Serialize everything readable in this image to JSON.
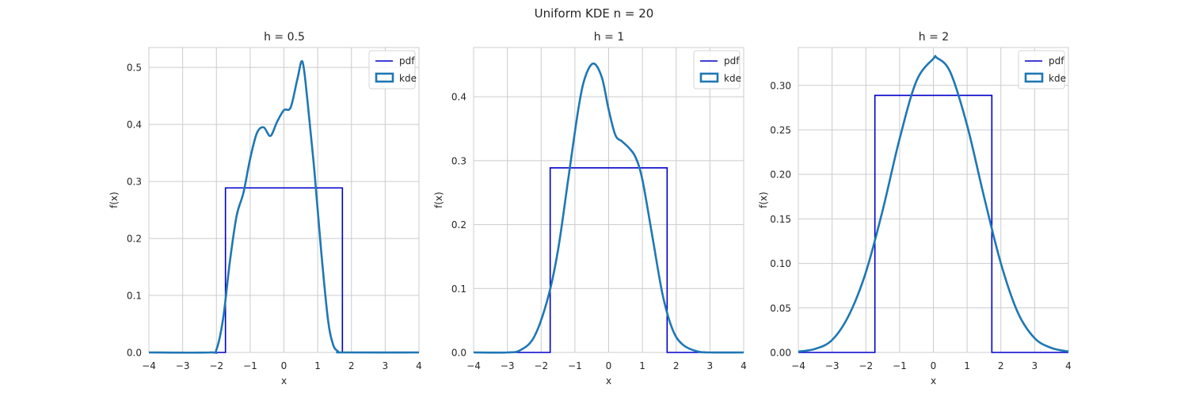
{
  "figure": {
    "suptitle": "Uniform KDE n = 20"
  },
  "colors": {
    "pdf": "#0000cc",
    "kde": "#1f77b4",
    "grid": "#cccccc",
    "spine": "#cccccc",
    "text": "#262626"
  },
  "chart_data": [
    {
      "type": "line",
      "title": "h = 0.5",
      "xlabel": "x",
      "ylabel": "f(x)",
      "xlim": [
        -4,
        4
      ],
      "ylim": [
        0,
        0.535
      ],
      "xticks": [
        -4,
        -3,
        -2,
        -1,
        0,
        1,
        2,
        3,
        4
      ],
      "xtick_labels": [
        "−4",
        "−3",
        "−2",
        "−1",
        "0",
        "1",
        "2",
        "3",
        "4"
      ],
      "yticks": [
        0,
        0.1,
        0.2,
        0.3,
        0.4,
        0.5
      ],
      "ytick_labels": [
        "0.0",
        "0.1",
        "0.2",
        "0.3",
        "0.4",
        "0.5"
      ],
      "grid": true,
      "legend": {
        "position": "top-right",
        "entries": [
          "pdf",
          "kde"
        ]
      },
      "series": [
        {
          "name": "pdf",
          "style": "step",
          "x": [
            -4,
            -1.732,
            -1.732,
            1.732,
            1.732,
            4
          ],
          "y": [
            0,
            0,
            0.2887,
            0.2887,
            0,
            0
          ]
        },
        {
          "name": "kde",
          "style": "smooth",
          "x": [
            -4,
            -2.2,
            -2.0,
            -1.8,
            -1.6,
            -1.4,
            -1.2,
            -1.0,
            -0.8,
            -0.6,
            -0.4,
            -0.2,
            0.0,
            0.2,
            0.4,
            0.55,
            0.7,
            0.9,
            1.1,
            1.3,
            1.45,
            1.6,
            1.8,
            4
          ],
          "y": [
            0,
            0,
            0.005,
            0.06,
            0.16,
            0.24,
            0.28,
            0.34,
            0.385,
            0.395,
            0.38,
            0.405,
            0.425,
            0.43,
            0.48,
            0.51,
            0.44,
            0.32,
            0.18,
            0.06,
            0.015,
            0.002,
            0,
            0
          ]
        }
      ]
    },
    {
      "type": "line",
      "title": "h = 1",
      "xlabel": "x",
      "ylabel": "f(x)",
      "xlim": [
        -4,
        4
      ],
      "ylim": [
        0,
        0.477
      ],
      "xticks": [
        -4,
        -3,
        -2,
        -1,
        0,
        1,
        2,
        3,
        4
      ],
      "xtick_labels": [
        "−4",
        "−3",
        "−2",
        "−1",
        "0",
        "1",
        "2",
        "3",
        "4"
      ],
      "yticks": [
        0,
        0.1,
        0.2,
        0.3,
        0.4
      ],
      "ytick_labels": [
        "0.0",
        "0.1",
        "0.2",
        "0.3",
        "0.4"
      ],
      "grid": true,
      "legend": {
        "position": "top-right",
        "entries": [
          "pdf",
          "kde"
        ]
      },
      "series": [
        {
          "name": "pdf",
          "style": "step",
          "x": [
            -4,
            -1.732,
            -1.732,
            1.732,
            1.732,
            4
          ],
          "y": [
            0,
            0,
            0.2887,
            0.2887,
            0,
            0
          ]
        },
        {
          "name": "kde",
          "style": "smooth",
          "x": [
            -4,
            -3.0,
            -2.6,
            -2.2,
            -1.8,
            -1.5,
            -1.2,
            -0.9,
            -0.7,
            -0.45,
            -0.2,
            0.0,
            0.2,
            0.4,
            0.6,
            0.8,
            1.0,
            1.3,
            1.6,
            1.9,
            2.2,
            2.6,
            3.0,
            4
          ],
          "y": [
            0,
            0,
            0.004,
            0.025,
            0.085,
            0.16,
            0.27,
            0.38,
            0.43,
            0.452,
            0.43,
            0.38,
            0.34,
            0.33,
            0.32,
            0.305,
            0.27,
            0.18,
            0.09,
            0.035,
            0.012,
            0.002,
            0,
            0
          ]
        }
      ]
    },
    {
      "type": "line",
      "title": "h = 2",
      "xlabel": "x",
      "ylabel": "f(x)",
      "xlim": [
        -4,
        4
      ],
      "ylim": [
        0,
        0.3425
      ],
      "xticks": [
        -4,
        -3,
        -2,
        -1,
        0,
        1,
        2,
        3,
        4
      ],
      "xtick_labels": [
        "−4",
        "−3",
        "−2",
        "−1",
        "0",
        "1",
        "2",
        "3",
        "4"
      ],
      "yticks": [
        0,
        0.05,
        0.1,
        0.15,
        0.2,
        0.25,
        0.3
      ],
      "ytick_labels": [
        "0.00",
        "0.05",
        "0.10",
        "0.15",
        "0.20",
        "0.25",
        "0.30"
      ],
      "grid": true,
      "legend": {
        "position": "top-right",
        "entries": [
          "pdf",
          "kde"
        ]
      },
      "series": [
        {
          "name": "pdf",
          "style": "step",
          "x": [
            -4,
            -1.732,
            -1.732,
            1.732,
            1.732,
            4
          ],
          "y": [
            0,
            0,
            0.2887,
            0.2887,
            0,
            0
          ]
        },
        {
          "name": "kde",
          "style": "smooth",
          "x": [
            -4,
            -3.5,
            -3.0,
            -2.5,
            -2.0,
            -1.5,
            -1.0,
            -0.5,
            0.0,
            0.1,
            0.5,
            1.0,
            1.5,
            2.0,
            2.5,
            3.0,
            3.5,
            4
          ],
          "y": [
            0.001,
            0.004,
            0.014,
            0.042,
            0.09,
            0.16,
            0.24,
            0.305,
            0.33,
            0.331,
            0.315,
            0.255,
            0.175,
            0.1,
            0.045,
            0.016,
            0.005,
            0.001
          ]
        }
      ]
    }
  ]
}
